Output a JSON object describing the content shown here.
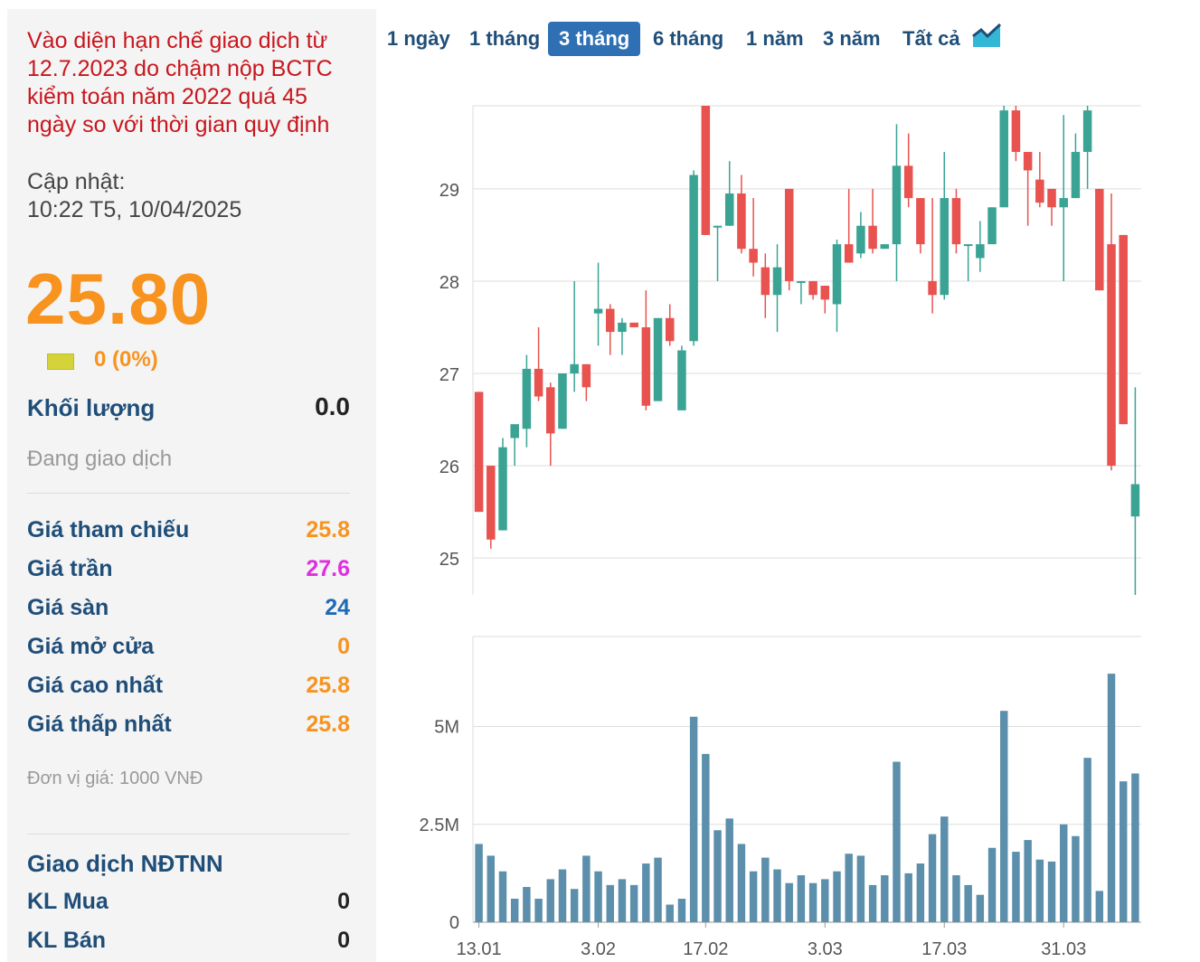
{
  "info": {
    "notice": "Vào diện hạn chế giao dịch từ 12.7.2023 do chậm nộp BCTC kiểm toán năm 2022 quá 45 ngày so với thời gian quy định",
    "update_label": "Cập nhật:",
    "update_time": "10:22 T5, 10/04/2025",
    "price": "25.80",
    "change": "0 (0%)",
    "volume_label": "Khối lượng",
    "volume_value": "0.0",
    "status": "Đang giao dịch",
    "rows": [
      {
        "label": "Giá tham chiếu",
        "value": "25.8",
        "color": "#f7931e"
      },
      {
        "label": "Giá trần",
        "value": "27.6",
        "color": "#e02ee0"
      },
      {
        "label": "Giá sàn",
        "value": "24",
        "color": "#1f6bb4"
      },
      {
        "label": "Giá mở cửa",
        "value": "0",
        "color": "#f7931e"
      },
      {
        "label": "Giá cao nhất",
        "value": "25.8",
        "color": "#f7931e"
      },
      {
        "label": "Giá thấp nhất",
        "value": "25.8",
        "color": "#f7931e"
      }
    ],
    "unit_note": "Đơn vị giá: 1000 VNĐ",
    "foreign_title": "Giao dịch NĐTNN",
    "foreign_rows": [
      {
        "label": "KL Mua",
        "value": "0"
      },
      {
        "label": "KL Bán",
        "value": "0"
      }
    ]
  },
  "tabs": [
    {
      "label": "1 ngày",
      "active": false
    },
    {
      "label": "1 tháng",
      "active": false
    },
    {
      "label": "3 tháng",
      "active": true
    },
    {
      "label": "6 tháng",
      "active": false
    },
    {
      "label": "1 năm",
      "active": false
    },
    {
      "label": "3 năm",
      "active": false
    },
    {
      "label": "Tất cả",
      "active": false
    }
  ],
  "chart_icon": "area-chart-icon",
  "colors": {
    "up": "#3aa394",
    "down": "#e8524f",
    "volume": "#5b8fab",
    "grid": "#dddddd"
  },
  "chart_data": [
    {
      "type": "candlestick",
      "x_ticks": [
        "13.01",
        "3.02",
        "17.02",
        "3.03",
        "17.03",
        "31.03"
      ],
      "y_ticks": [
        "25",
        "26",
        "27",
        "28",
        "29"
      ],
      "ylim": [
        24.6,
        29.9
      ],
      "grid": true,
      "candles": [
        {
          "o": 26.8,
          "h": 26.8,
          "l": 25.5,
          "c": 25.5
        },
        {
          "o": 26.0,
          "h": 26.0,
          "l": 25.1,
          "c": 25.2
        },
        {
          "o": 25.3,
          "h": 26.3,
          "l": 25.3,
          "c": 26.2
        },
        {
          "o": 26.3,
          "h": 26.4,
          "l": 26.0,
          "c": 26.45
        },
        {
          "o": 26.4,
          "h": 27.2,
          "l": 26.2,
          "c": 27.05
        },
        {
          "o": 27.05,
          "h": 27.5,
          "l": 26.7,
          "c": 26.75
        },
        {
          "o": 26.85,
          "h": 26.9,
          "l": 26.0,
          "c": 26.35
        },
        {
          "o": 26.4,
          "h": 27.0,
          "l": 26.4,
          "c": 27.0
        },
        {
          "o": 27.0,
          "h": 28.0,
          "l": 26.8,
          "c": 27.1
        },
        {
          "o": 27.1,
          "h": 27.1,
          "l": 26.7,
          "c": 26.85
        },
        {
          "o": 27.65,
          "h": 28.2,
          "l": 27.3,
          "c": 27.7
        },
        {
          "o": 27.7,
          "h": 27.75,
          "l": 27.2,
          "c": 27.45
        },
        {
          "o": 27.45,
          "h": 27.6,
          "l": 27.2,
          "c": 27.55
        },
        {
          "o": 27.55,
          "h": 27.55,
          "l": 27.5,
          "c": 27.5
        },
        {
          "o": 27.5,
          "h": 27.9,
          "l": 26.6,
          "c": 26.65
        },
        {
          "o": 26.7,
          "h": 27.6,
          "l": 26.7,
          "c": 27.6
        },
        {
          "o": 27.6,
          "h": 27.75,
          "l": 27.3,
          "c": 27.35
        },
        {
          "o": 26.6,
          "h": 27.3,
          "l": 26.6,
          "c": 27.25
        },
        {
          "o": 27.35,
          "h": 29.2,
          "l": 27.3,
          "c": 29.15
        },
        {
          "o": 29.9,
          "h": 29.9,
          "l": 28.5,
          "c": 28.5
        },
        {
          "o": 28.6,
          "h": 28.6,
          "l": 28.0,
          "c": 28.6
        },
        {
          "o": 28.6,
          "h": 29.3,
          "l": 28.6,
          "c": 28.95
        },
        {
          "o": 28.95,
          "h": 29.15,
          "l": 28.3,
          "c": 28.35
        },
        {
          "o": 28.35,
          "h": 28.9,
          "l": 28.05,
          "c": 28.2
        },
        {
          "o": 28.15,
          "h": 28.3,
          "l": 27.6,
          "c": 27.85
        },
        {
          "o": 27.85,
          "h": 28.4,
          "l": 27.45,
          "c": 28.15
        },
        {
          "o": 29.0,
          "h": 29.0,
          "l": 27.9,
          "c": 28.0
        },
        {
          "o": 28.0,
          "h": 28.0,
          "l": 27.75,
          "c": 28.0
        },
        {
          "o": 28.0,
          "h": 28.0,
          "l": 27.8,
          "c": 27.85
        },
        {
          "o": 27.95,
          "h": 27.95,
          "l": 27.65,
          "c": 27.8
        },
        {
          "o": 27.75,
          "h": 28.45,
          "l": 27.45,
          "c": 28.4
        },
        {
          "o": 28.4,
          "h": 29.0,
          "l": 28.2,
          "c": 28.2
        },
        {
          "o": 28.3,
          "h": 28.75,
          "l": 28.25,
          "c": 28.6
        },
        {
          "o": 28.6,
          "h": 29.0,
          "l": 28.3,
          "c": 28.35
        },
        {
          "o": 28.35,
          "h": 28.4,
          "l": 28.35,
          "c": 28.4
        },
        {
          "o": 28.4,
          "h": 29.7,
          "l": 28.0,
          "c": 29.25
        },
        {
          "o": 29.25,
          "h": 29.6,
          "l": 28.8,
          "c": 28.9
        },
        {
          "o": 28.9,
          "h": 28.9,
          "l": 28.3,
          "c": 28.4
        },
        {
          "o": 28.0,
          "h": 28.9,
          "l": 27.65,
          "c": 27.85
        },
        {
          "o": 27.85,
          "h": 29.4,
          "l": 27.8,
          "c": 28.9
        },
        {
          "o": 28.9,
          "h": 29.0,
          "l": 28.3,
          "c": 28.4
        },
        {
          "o": 28.4,
          "h": 28.4,
          "l": 28.0,
          "c": 28.4
        },
        {
          "o": 28.25,
          "h": 28.65,
          "l": 28.1,
          "c": 28.4
        },
        {
          "o": 28.4,
          "h": 28.8,
          "l": 28.4,
          "c": 28.8
        },
        {
          "o": 28.8,
          "h": 29.9,
          "l": 28.8,
          "c": 29.85
        },
        {
          "o": 29.85,
          "h": 29.9,
          "l": 29.3,
          "c": 29.4
        },
        {
          "o": 29.4,
          "h": 29.4,
          "l": 28.6,
          "c": 29.2
        },
        {
          "o": 29.1,
          "h": 29.4,
          "l": 28.8,
          "c": 28.85
        },
        {
          "o": 29.0,
          "h": 29.0,
          "l": 28.6,
          "c": 28.8
        },
        {
          "o": 28.8,
          "h": 29.8,
          "l": 28.0,
          "c": 28.9
        },
        {
          "o": 28.9,
          "h": 29.6,
          "l": 28.9,
          "c": 29.4
        },
        {
          "o": 29.4,
          "h": 29.9,
          "l": 29.0,
          "c": 29.85
        },
        {
          "o": 29.0,
          "h": 29.0,
          "l": 27.9,
          "c": 27.9
        },
        {
          "o": 28.4,
          "h": 28.95,
          "l": 25.95,
          "c": 26.0
        },
        {
          "o": 28.5,
          "h": 28.5,
          "l": 26.45,
          "c": 26.45
        },
        {
          "o": 25.45,
          "h": 26.85,
          "l": 24.6,
          "c": 25.8
        }
      ]
    },
    {
      "type": "bar",
      "series": [
        {
          "values": [
            2.0,
            1.7,
            1.3,
            0.6,
            0.9,
            0.6,
            1.1,
            1.35,
            0.85,
            1.7,
            1.3,
            0.95,
            1.1,
            0.95,
            1.5,
            1.65,
            0.45,
            0.6,
            5.25,
            4.3,
            2.35,
            2.65,
            2.0,
            1.3,
            1.65,
            1.35,
            1.0,
            1.2,
            1.0,
            1.1,
            1.3,
            1.75,
            1.7,
            0.95,
            1.2,
            4.1,
            1.25,
            1.5,
            2.25,
            2.7,
            1.2,
            0.95,
            0.7,
            1.9,
            5.4,
            1.8,
            2.1,
            1.6,
            1.55,
            2.5,
            2.2,
            4.2,
            0.8,
            6.35,
            3.6,
            3.8
          ]
        }
      ],
      "y_ticks": [
        "0",
        "2.5M",
        "5M"
      ],
      "ylim": [
        0,
        7.3
      ]
    }
  ]
}
